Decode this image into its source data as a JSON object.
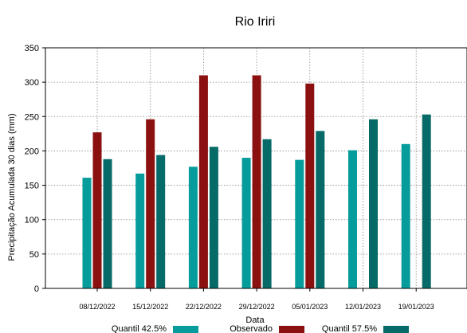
{
  "colors": {
    "quantil_42": "#069c9c",
    "observado": "#8b1111",
    "quantil_57": "#066b68",
    "grid": "#8a8a8a",
    "axis": "#000000"
  },
  "chart_data": {
    "type": "bar",
    "title": "Rio Iriri",
    "xlabel": "Data",
    "ylabel": "Precipitação Acumulada 30 dias (mm)",
    "ylim": [
      0,
      350
    ],
    "yticks": [
      0,
      50,
      100,
      150,
      200,
      250,
      300,
      350
    ],
    "grid": true,
    "legend_position": "bottom",
    "categories": [
      "08/12/2022",
      "15/12/2022",
      "22/12/2022",
      "29/12/2022",
      "05/01/2023",
      "12/01/2023",
      "19/01/2023"
    ],
    "series": [
      {
        "name": "Quantil 42.5%",
        "color_key": "quantil_42",
        "values": [
          161,
          167,
          177,
          190,
          187,
          201,
          210
        ]
      },
      {
        "name": "Observado",
        "color_key": "observado",
        "values": [
          227,
          246,
          310,
          310,
          298,
          null,
          null
        ]
      },
      {
        "name": "Quantil 57.5%",
        "color_key": "quantil_57",
        "values": [
          188,
          194,
          206,
          217,
          229,
          246,
          253
        ]
      }
    ]
  }
}
